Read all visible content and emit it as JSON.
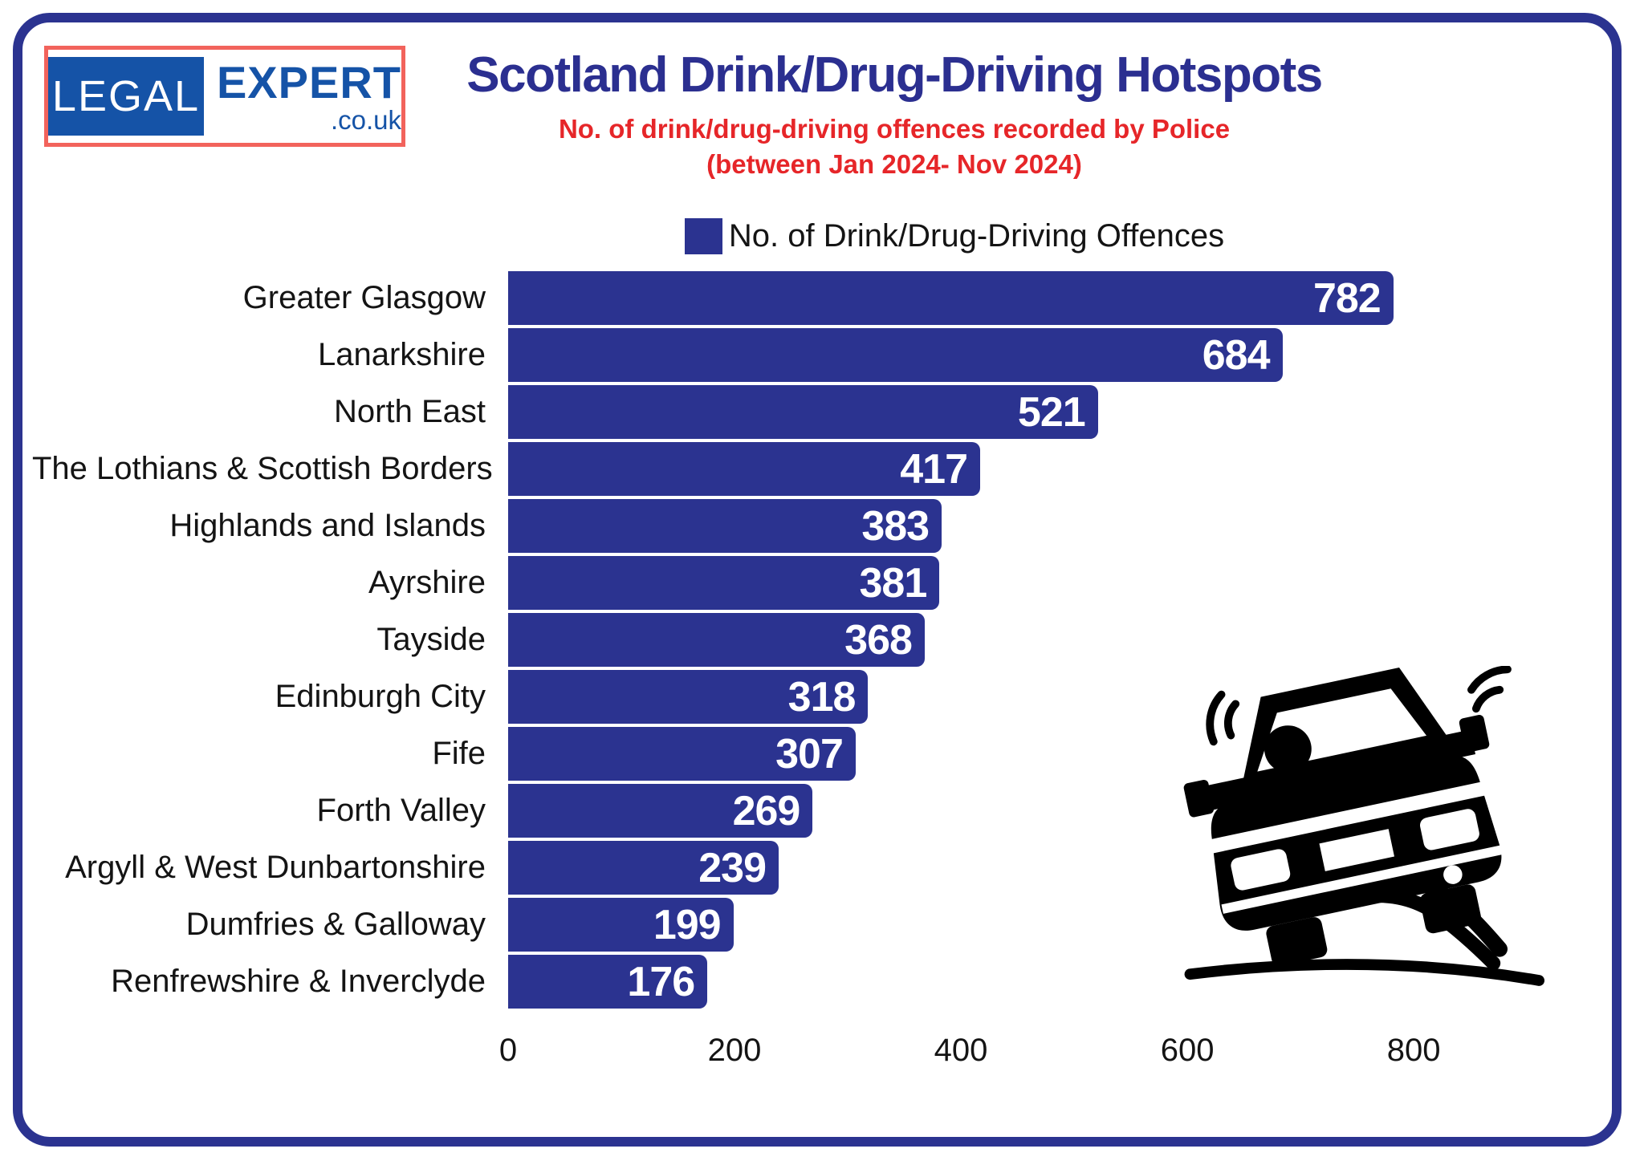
{
  "logo": {
    "legal": "LEGAL",
    "expert": "EXPERT",
    "domain_suffix": ".co.uk"
  },
  "header": {
    "title": "Scotland Drink/Drug-Driving Hotspots",
    "subtitle_line1": "No. of drink/drug-driving offences recorded by Police",
    "subtitle_line2": "(between Jan 2024- Nov 2024)"
  },
  "legend": {
    "label": "No. of Drink/Drug-Driving Offences"
  },
  "chart_data": {
    "type": "bar",
    "orientation": "horizontal",
    "title": "Scotland Drink/Drug-Driving Hotspots",
    "subtitle": "No. of drink/drug-driving offences recorded by Police (between Jan 2024- Nov 2024)",
    "legend": [
      "No. of Drink/Drug-Driving Offences"
    ],
    "legend_position": "top-center",
    "categories": [
      "Greater Glasgow",
      "Lanarkshire",
      "North East",
      "The Lothians & Scottish Borders",
      "Highlands and Islands",
      "Ayrshire",
      "Tayside",
      "Edinburgh City",
      "Fife",
      "Forth Valley",
      "Argyll & West Dunbartonshire",
      "Dumfries & Galloway",
      "Renfrewshire & Inverclyde"
    ],
    "values": [
      782,
      684,
      521,
      417,
      383,
      381,
      368,
      318,
      307,
      269,
      239,
      199,
      176
    ],
    "xlabel": "",
    "ylabel": "",
    "xticks": [
      0,
      200,
      400,
      600,
      800
    ],
    "xlim": [
      0,
      985
    ],
    "grid": false,
    "value_labels": "inside-end-white-bold"
  },
  "icons": {
    "car": "skidding-car-icon",
    "legend_swatch": "blue-square-swatch"
  },
  "colors": {
    "bar_blue": "#2b3390",
    "frame_navy": "#2b3390",
    "title_navy": "#2b2f90",
    "subtitle_red": "#e62629",
    "logo_blue": "#1553a7",
    "logo_border_red": "#f2635c",
    "text_black": "#141414",
    "value_label_white": "#ffffff"
  }
}
